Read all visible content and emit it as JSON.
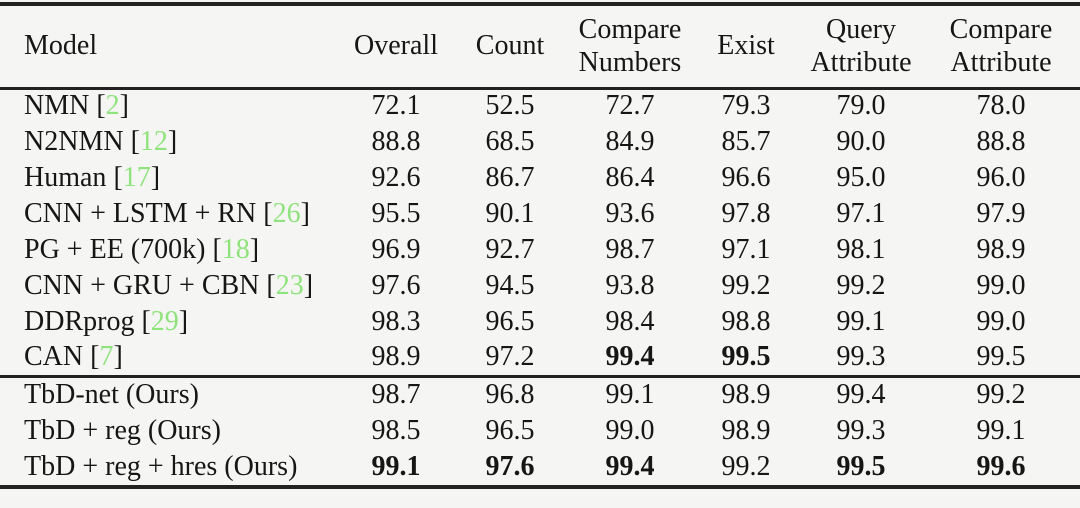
{
  "colors": {
    "background": "#f5f5f3",
    "text": "#161616",
    "rule": "#222222",
    "citation": "#8fe37d"
  },
  "table": {
    "columns": [
      "Model",
      "Overall",
      "Count",
      "Compare Numbers",
      "Exist",
      "Query Attribute",
      "Compare Attribute"
    ],
    "groups": [
      {
        "name": "prior-models",
        "rows": [
          {
            "model": "NMN",
            "cite": "2",
            "values": [
              "72.1",
              "52.5",
              "72.7",
              "79.3",
              "79.0",
              "78.0"
            ],
            "bold": [
              false,
              false,
              false,
              false,
              false,
              false
            ]
          },
          {
            "model": "N2NMN",
            "cite": "12",
            "values": [
              "88.8",
              "68.5",
              "84.9",
              "85.7",
              "90.0",
              "88.8"
            ],
            "bold": [
              false,
              false,
              false,
              false,
              false,
              false
            ]
          },
          {
            "model": "Human",
            "cite": "17",
            "values": [
              "92.6",
              "86.7",
              "86.4",
              "96.6",
              "95.0",
              "96.0"
            ],
            "bold": [
              false,
              false,
              false,
              false,
              false,
              false
            ]
          },
          {
            "model": "CNN + LSTM + RN",
            "cite": "26",
            "values": [
              "95.5",
              "90.1",
              "93.6",
              "97.8",
              "97.1",
              "97.9"
            ],
            "bold": [
              false,
              false,
              false,
              false,
              false,
              false
            ]
          },
          {
            "model": "PG + EE (700k)",
            "cite": "18",
            "values": [
              "96.9",
              "92.7",
              "98.7",
              "97.1",
              "98.1",
              "98.9"
            ],
            "bold": [
              false,
              false,
              false,
              false,
              false,
              false
            ]
          },
          {
            "model": "CNN + GRU + CBN",
            "cite": "23",
            "values": [
              "97.6",
              "94.5",
              "93.8",
              "99.2",
              "99.2",
              "99.0"
            ],
            "bold": [
              false,
              false,
              false,
              false,
              false,
              false
            ]
          },
          {
            "model": "DDRprog",
            "cite": "29",
            "values": [
              "98.3",
              "96.5",
              "98.4",
              "98.8",
              "99.1",
              "99.0"
            ],
            "bold": [
              false,
              false,
              false,
              false,
              false,
              false
            ]
          },
          {
            "model": "CAN",
            "cite": "7",
            "values": [
              "98.9",
              "97.2",
              "99.4",
              "99.5",
              "99.3",
              "99.5"
            ],
            "bold": [
              false,
              false,
              true,
              true,
              false,
              false
            ]
          }
        ]
      },
      {
        "name": "ours-models",
        "rows": [
          {
            "model": "TbD-net (Ours)",
            "cite": null,
            "values": [
              "98.7",
              "96.8",
              "99.1",
              "98.9",
              "99.4",
              "99.2"
            ],
            "bold": [
              false,
              false,
              false,
              false,
              false,
              false
            ]
          },
          {
            "model": "TbD + reg (Ours)",
            "cite": null,
            "values": [
              "98.5",
              "96.5",
              "99.0",
              "98.9",
              "99.3",
              "99.1"
            ],
            "bold": [
              false,
              false,
              false,
              false,
              false,
              false
            ]
          },
          {
            "model": "TbD + reg + hres (Ours)",
            "cite": null,
            "values": [
              "99.1",
              "97.6",
              "99.4",
              "99.2",
              "99.5",
              "99.6"
            ],
            "bold": [
              true,
              true,
              true,
              false,
              true,
              true
            ]
          }
        ]
      }
    ]
  }
}
